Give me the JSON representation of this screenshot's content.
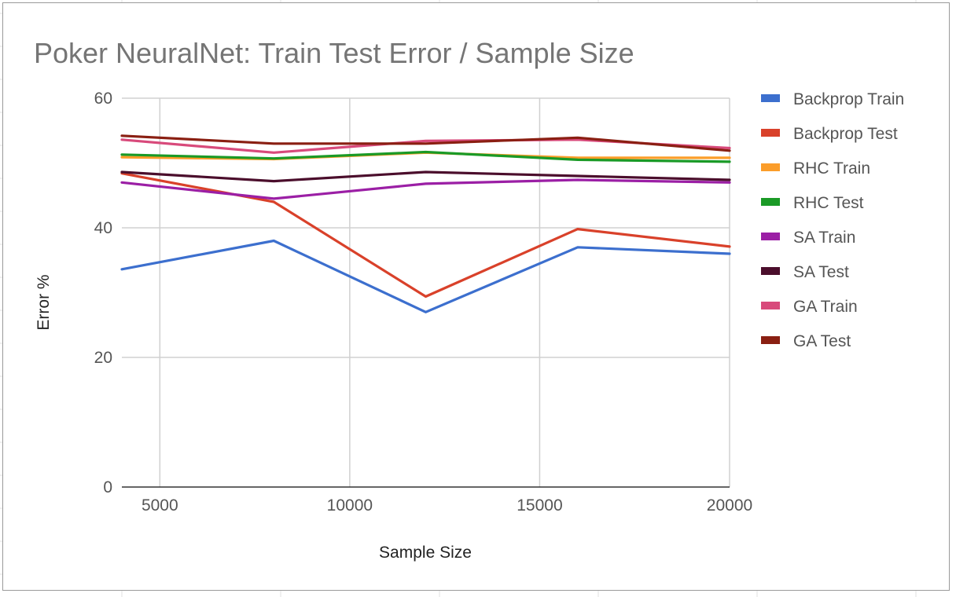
{
  "chart_data": {
    "type": "line",
    "title": "Poker NeuralNet: Train Test Error / Sample Size",
    "xlabel": "Sample Size",
    "ylabel": "Error %",
    "x": [
      4000,
      8000,
      12000,
      16000,
      20000
    ],
    "xlim": [
      4000,
      20000
    ],
    "ylim": [
      0,
      60
    ],
    "xticks": [
      5000,
      10000,
      15000,
      20000
    ],
    "yticks": [
      0,
      20,
      40,
      60
    ],
    "xtick_labels": [
      "5000",
      "10000",
      "15000",
      "20000"
    ],
    "ytick_labels": [
      "0",
      "20",
      "40",
      "60"
    ],
    "grid": true,
    "legend_position": "right",
    "series": [
      {
        "name": "Backprop Train",
        "color": "#3c6fce",
        "values": [
          33.6,
          38.0,
          27.0,
          37.0,
          36.0
        ]
      },
      {
        "name": "Backprop Test",
        "color": "#d9412a",
        "values": [
          48.4,
          44.0,
          29.4,
          39.8,
          37.1
        ]
      },
      {
        "name": "RHC Train",
        "color": "#fb9d2a",
        "values": [
          50.9,
          50.6,
          51.6,
          50.8,
          50.8
        ]
      },
      {
        "name": "RHC Test",
        "color": "#1a9a26",
        "values": [
          51.3,
          50.7,
          51.7,
          50.5,
          50.2
        ]
      },
      {
        "name": "SA Train",
        "color": "#9b1fa5",
        "values": [
          47.0,
          44.5,
          46.8,
          47.4,
          47.0
        ]
      },
      {
        "name": "SA Test",
        "color": "#4b0e2c",
        "values": [
          48.6,
          47.2,
          48.6,
          48.0,
          47.4
        ]
      },
      {
        "name": "GA Train",
        "color": "#d84a7b",
        "values": [
          53.6,
          51.6,
          53.4,
          53.6,
          52.3
        ]
      },
      {
        "name": "GA Test",
        "color": "#8a1f12",
        "values": [
          54.2,
          53.0,
          53.0,
          53.9,
          51.9
        ]
      }
    ]
  }
}
